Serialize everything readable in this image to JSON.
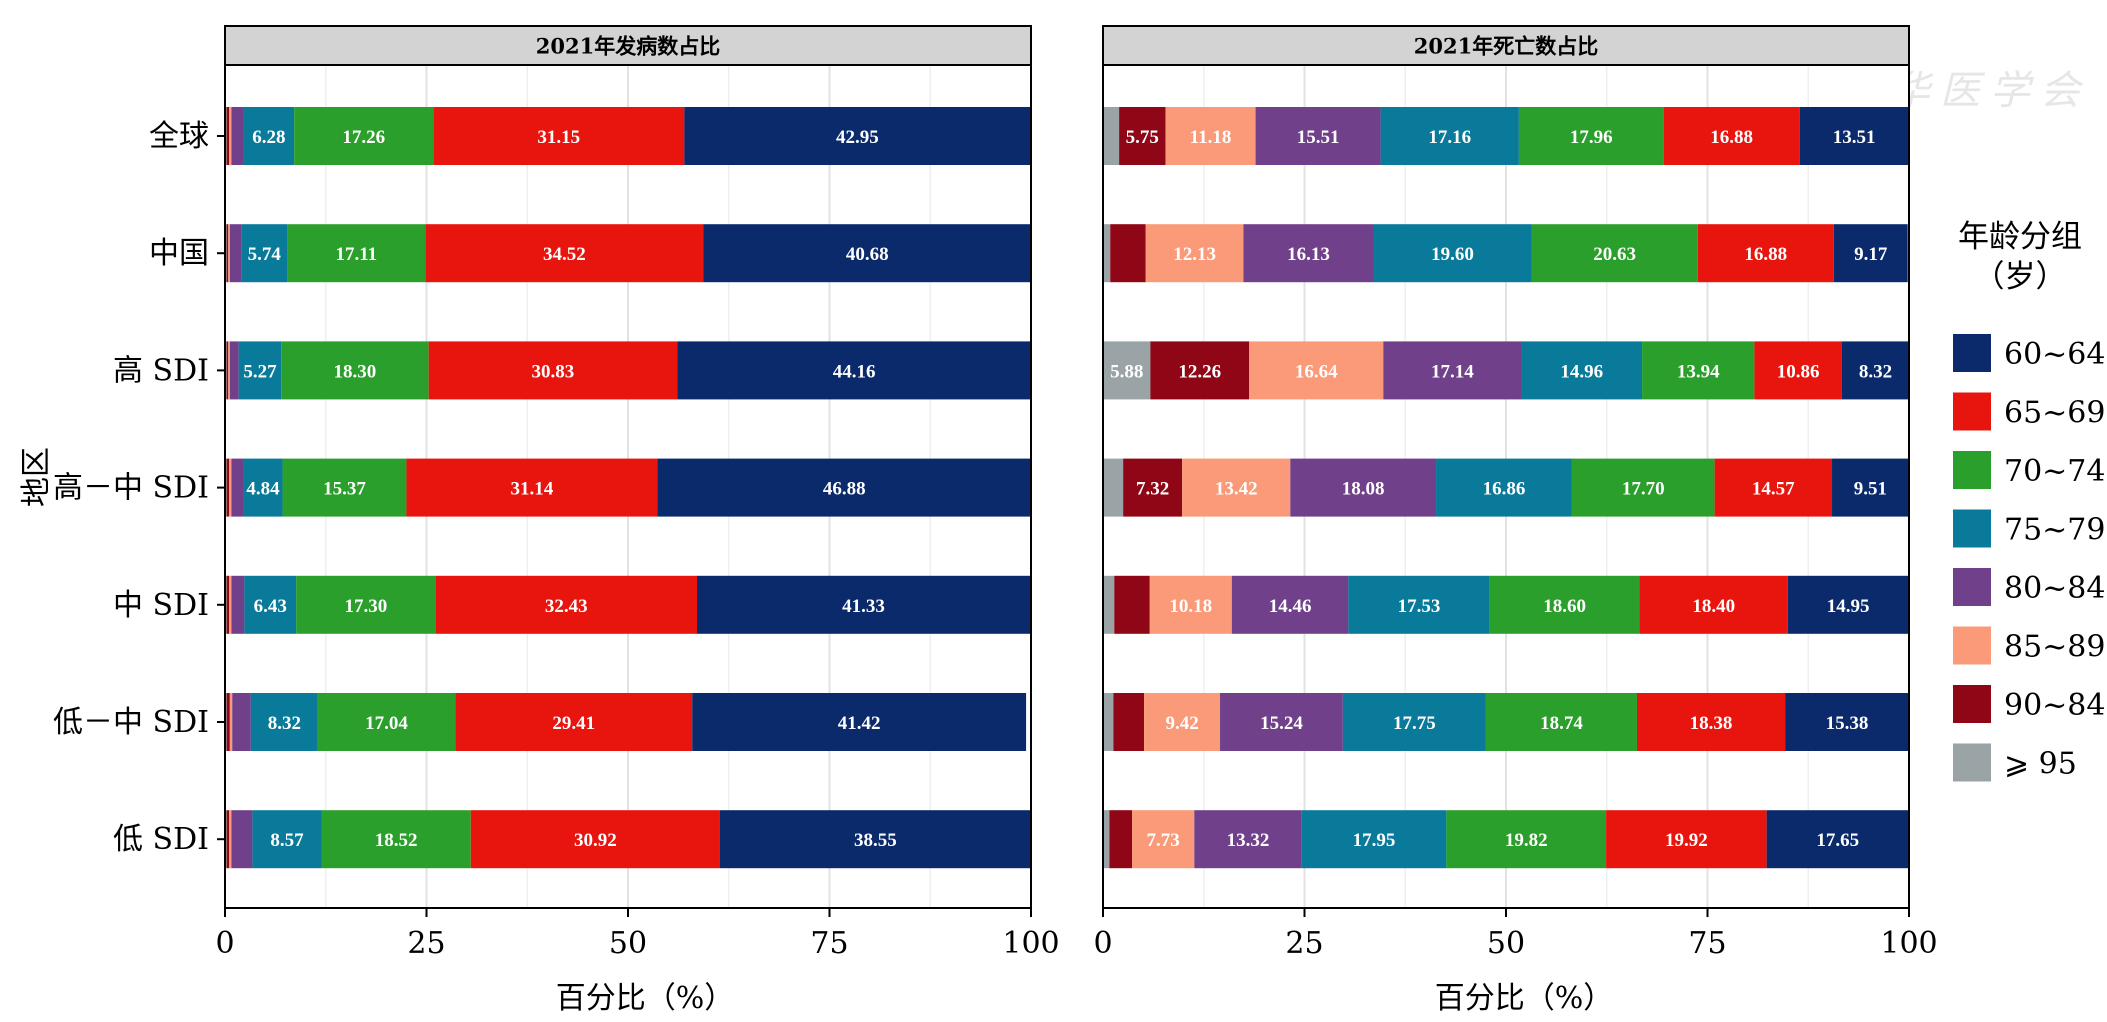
{
  "axis": {
    "y_label": "地区",
    "x_label": "百分比（%）"
  },
  "legend": {
    "title_line1": "年龄分组",
    "title_line2": "（岁）",
    "position": "right",
    "items": [
      {
        "label": "60~64",
        "color": "#0b2a6b"
      },
      {
        "label": "65~69",
        "color": "#e8140e"
      },
      {
        "label": "70~74",
        "color": "#2b9f2b"
      },
      {
        "label": "75~79",
        "color": "#0a7a9a"
      },
      {
        "label": "80~84",
        "color": "#71408a"
      },
      {
        "label": "85~89",
        "color": "#fa9a78"
      },
      {
        "label": "90~84",
        "color": "#8f0616"
      },
      {
        "label": "⩾ 95",
        "color": "#9aa3a5"
      }
    ]
  },
  "watermark": "中华医学会",
  "chart_data": [
    {
      "type": "bar",
      "orientation": "horizontal",
      "stacked": true,
      "title": "2021年发病数占比",
      "xlabel": "百分比（%）",
      "ylabel": "地区",
      "xlim": [
        0,
        100
      ],
      "xticks": [
        0,
        25,
        50,
        75,
        100
      ],
      "grid": true,
      "categories": [
        "全球",
        "中国",
        "高 SDI",
        "高－中 SDI",
        "中 SDI",
        "低－中 SDI",
        "低 SDI"
      ],
      "series": [
        {
          "name": "⩾ 95",
          "values": [
            0.2,
            0.2,
            0.2,
            0.2,
            0.2,
            0.2,
            0.2
          ],
          "labels": [
            "",
            "",
            "",
            "",
            "",
            "",
            ""
          ]
        },
        {
          "name": "90~84",
          "values": [
            0.3,
            0.2,
            0.2,
            0.3,
            0.3,
            0.4,
            0.3
          ],
          "labels": [
            "",
            "",
            "",
            "",
            "",
            "",
            ""
          ]
        },
        {
          "name": "85~89",
          "values": [
            0.3,
            0.2,
            0.2,
            0.3,
            0.3,
            0.3,
            0.3
          ],
          "labels": [
            "",
            "",
            "",
            "",
            "",
            "",
            ""
          ]
        },
        {
          "name": "80~84",
          "values": [
            1.5,
            1.4,
            1.1,
            1.5,
            1.6,
            2.3,
            2.6
          ],
          "labels": [
            "",
            "",
            "",
            "",
            "",
            "",
            ""
          ]
        },
        {
          "name": "75~79",
          "values": [
            6.28,
            5.74,
            5.27,
            4.84,
            6.43,
            8.32,
            8.57
          ],
          "labels": [
            "6.28",
            "5.74",
            "5.27",
            "4.84",
            "6.43",
            "8.32",
            "8.57"
          ]
        },
        {
          "name": "70~74",
          "values": [
            17.26,
            17.11,
            18.3,
            15.37,
            17.3,
            17.04,
            18.52
          ],
          "labels": [
            "17.26",
            "17.11",
            "18.30",
            "15.37",
            "17.30",
            "17.04",
            "18.52"
          ]
        },
        {
          "name": "65~69",
          "values": [
            31.15,
            34.52,
            30.83,
            31.14,
            32.43,
            29.41,
            30.92
          ],
          "labels": [
            "31.15",
            "34.52",
            "30.83",
            "31.14",
            "32.43",
            "29.41",
            "30.92"
          ]
        },
        {
          "name": "60~64",
          "values": [
            42.95,
            40.68,
            44.16,
            46.88,
            41.33,
            41.42,
            38.55
          ],
          "labels": [
            "42.95",
            "40.68",
            "44.16",
            "46.88",
            "41.33",
            "41.42",
            "38.55"
          ]
        }
      ]
    },
    {
      "type": "bar",
      "orientation": "horizontal",
      "stacked": true,
      "title": "2021年死亡数占比",
      "xlabel": "百分比（%）",
      "xlim": [
        0,
        100
      ],
      "xticks": [
        0,
        25,
        50,
        75,
        100
      ],
      "grid": true,
      "categories": [
        "全球",
        "中国",
        "高 SDI",
        "高－中 SDI",
        "中 SDI",
        "低－中 SDI",
        "低 SDI"
      ],
      "series": [
        {
          "name": "⩾ 95",
          "values": [
            2.0,
            0.9,
            5.88,
            2.5,
            1.4,
            1.3,
            0.8
          ],
          "labels": [
            "",
            "",
            "5.88",
            "",
            "",
            "",
            ""
          ]
        },
        {
          "name": "90~84",
          "values": [
            5.75,
            4.4,
            12.26,
            7.32,
            4.4,
            3.8,
            2.8
          ],
          "labels": [
            "5.75",
            "",
            "12.26",
            "7.32",
            "",
            "",
            ""
          ]
        },
        {
          "name": "85~89",
          "values": [
            11.18,
            12.13,
            16.64,
            13.42,
            10.18,
            9.42,
            7.73
          ],
          "labels": [
            "11.18",
            "12.13",
            "16.64",
            "13.42",
            "10.18",
            "9.42",
            "7.73"
          ]
        },
        {
          "name": "80~84",
          "values": [
            15.51,
            16.13,
            17.14,
            18.08,
            14.46,
            15.24,
            13.32
          ],
          "labels": [
            "15.51",
            "16.13",
            "17.14",
            "18.08",
            "14.46",
            "15.24",
            "13.32"
          ]
        },
        {
          "name": "75~79",
          "values": [
            17.16,
            19.6,
            14.96,
            16.86,
            17.53,
            17.75,
            17.95
          ],
          "labels": [
            "17.16",
            "19.60",
            "14.96",
            "16.86",
            "17.53",
            "17.75",
            "17.95"
          ]
        },
        {
          "name": "70~74",
          "values": [
            17.96,
            20.63,
            13.94,
            17.7,
            18.6,
            18.74,
            19.82
          ],
          "labels": [
            "17.96",
            "20.63",
            "13.94",
            "17.70",
            "18.60",
            "18.74",
            "19.82"
          ]
        },
        {
          "name": "65~69",
          "values": [
            16.88,
            16.88,
            10.86,
            14.57,
            18.4,
            18.38,
            19.92
          ],
          "labels": [
            "16.88",
            "16.88",
            "10.86",
            "14.57",
            "18.40",
            "18.38",
            "19.92"
          ]
        },
        {
          "name": "60~64",
          "values": [
            13.51,
            9.17,
            8.32,
            9.51,
            14.95,
            15.38,
            17.65
          ],
          "labels": [
            "13.51",
            "9.17",
            "8.32",
            "9.51",
            "14.95",
            "15.38",
            "17.65"
          ]
        }
      ]
    }
  ]
}
